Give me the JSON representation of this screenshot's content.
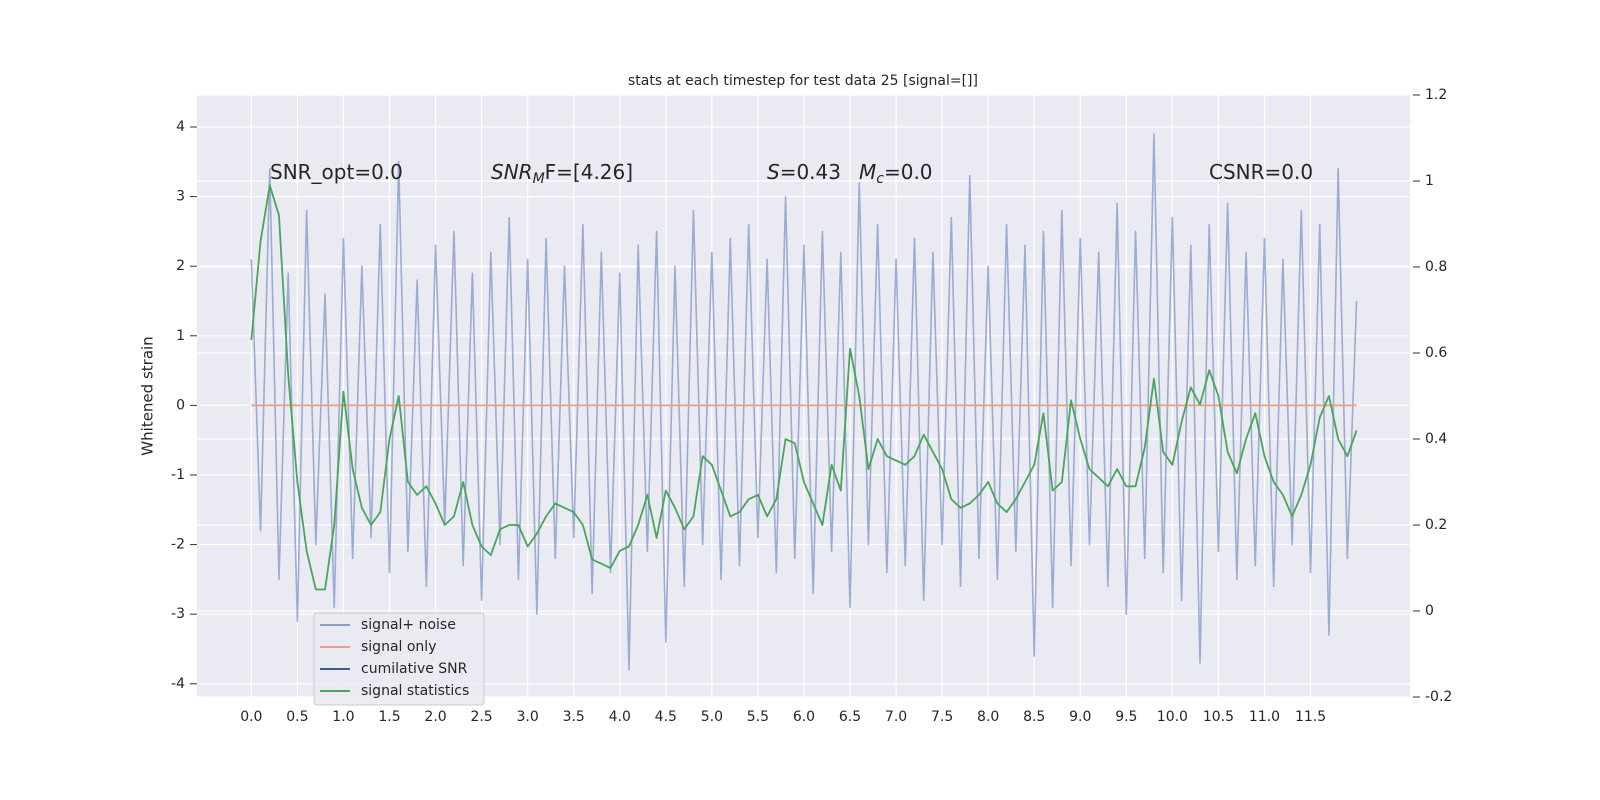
{
  "chart_data": {
    "type": "line",
    "title": "stats at each timestep for test data 25 [signal=[]]",
    "ylabel": "Whitened strain",
    "xlim": [
      -0.59,
      12.58
    ],
    "ylim": [
      -4.19,
      4.46
    ],
    "y2lim": [
      -0.2,
      1.2
    ],
    "xticks": [
      {
        "value": 0,
        "label": "0.0"
      },
      0.5,
      {
        "value": 1,
        "label": "1.0"
      },
      1.5,
      {
        "value": 2,
        "label": "2.0"
      },
      2.5,
      {
        "value": 3,
        "label": "3.0"
      },
      3.5,
      {
        "value": 4,
        "label": "4.0"
      },
      4.5,
      {
        "value": 5,
        "label": "5.0"
      },
      5.5,
      {
        "value": 6,
        "label": "6.0"
      },
      6.5,
      {
        "value": 7,
        "label": "7.0"
      },
      7.5,
      {
        "value": 8,
        "label": "8.0"
      },
      8.5,
      {
        "value": 9,
        "label": "9.0"
      },
      9.5,
      {
        "value": 10,
        "label": "10.0"
      },
      10.5,
      {
        "value": 11,
        "label": "11.0"
      },
      11.5
    ],
    "yticks": [
      -4,
      -3,
      -2,
      -1,
      0,
      1,
      2,
      3,
      4
    ],
    "y2ticks": [
      -0.2,
      0.0,
      0.2,
      0.4,
      0.6,
      0.8,
      1.0,
      1.2
    ],
    "grid": true,
    "annotations": [
      [
        {
          "text": "SNR_opt=0.0"
        }
      ],
      [
        {
          "text": "SNR",
          "italic": true
        },
        {
          "text": "M",
          "italic": true,
          "sub": true
        },
        {
          "text": "F=[4.26]"
        }
      ],
      [
        {
          "text": "S",
          "italic": true
        },
        {
          "text": "=0.43"
        }
      ],
      [
        {
          "text": "M",
          "italic": true
        },
        {
          "text": "c",
          "italic": true,
          "sub": true
        },
        {
          "text": "=0.0"
        }
      ],
      [
        {
          "text": "CSNR=0.0"
        }
      ]
    ],
    "x": [
      0,
      0.1,
      0.2,
      0.3,
      0.4,
      0.5,
      0.6,
      0.7,
      0.8,
      0.9,
      1,
      1.1,
      1.2,
      1.3,
      1.4,
      1.5,
      1.6,
      1.7,
      1.8,
      1.9,
      2,
      2.1,
      2.2,
      2.3,
      2.4,
      2.5,
      2.6,
      2.7,
      2.8,
      2.9,
      3,
      3.1,
      3.2,
      3.3,
      3.4,
      3.5,
      3.6,
      3.7,
      3.8,
      3.9,
      4,
      4.1,
      4.2,
      4.3,
      4.4,
      4.5,
      4.6,
      4.7,
      4.8,
      4.9,
      5,
      5.1,
      5.2,
      5.3,
      5.4,
      5.5,
      5.6,
      5.7,
      5.8,
      5.9,
      6,
      6.1,
      6.2,
      6.3,
      6.4,
      6.5,
      6.6,
      6.7,
      6.8,
      6.9,
      7,
      7.1,
      7.2,
      7.3,
      7.4,
      7.5,
      7.6,
      7.7,
      7.8,
      7.9,
      8,
      8.1,
      8.2,
      8.3,
      8.4,
      8.5,
      8.6,
      8.7,
      8.8,
      8.9,
      9,
      9.1,
      9.2,
      9.3,
      9.4,
      9.5,
      9.6,
      9.7,
      9.8,
      9.9,
      10,
      10.1,
      10.2,
      10.3,
      10.4,
      10.5,
      10.6,
      10.7,
      10.8,
      10.9,
      11,
      11.1,
      11.2,
      11.3,
      11.4,
      11.5,
      11.6,
      11.7,
      11.8,
      11.9,
      12
    ],
    "series": [
      {
        "name": "signal+ noise",
        "color": "#8da0cb",
        "values": [
          2.1,
          -1.8,
          3.4,
          -2.5,
          1.9,
          -3.1,
          2.8,
          -2.0,
          1.6,
          -2.9,
          2.4,
          -2.2,
          2.0,
          -1.9,
          2.6,
          -2.4,
          3.5,
          -2.1,
          1.8,
          -2.6,
          2.3,
          -1.7,
          2.5,
          -2.3,
          1.9,
          -2.8,
          2.2,
          -2.0,
          2.7,
          -2.5,
          2.1,
          -3.0,
          2.4,
          -2.2,
          2.0,
          -1.9,
          2.6,
          -2.7,
          2.2,
          -2.4,
          1.9,
          -3.8,
          2.3,
          -2.1,
          2.5,
          -3.4,
          2.0,
          -2.6,
          2.8,
          -2.0,
          2.2,
          -2.5,
          2.4,
          -2.3,
          2.6,
          -1.9,
          2.1,
          -2.4,
          3.0,
          -2.2,
          2.3,
          -2.7,
          2.5,
          -2.1,
          2.2,
          -2.9,
          3.2,
          -2.0,
          2.6,
          -2.4,
          2.1,
          -2.3,
          2.4,
          -2.8,
          2.2,
          -2.0,
          2.7,
          -2.6,
          3.3,
          -2.2,
          2.0,
          -2.5,
          2.6,
          -2.1,
          2.3,
          -3.6,
          2.5,
          -2.9,
          2.8,
          -2.3,
          2.4,
          -2.0,
          2.2,
          -2.6,
          2.9,
          -3.0,
          2.5,
          -2.2,
          3.9,
          -2.4,
          2.7,
          -2.8,
          2.3,
          -3.7,
          2.6,
          -2.1,
          2.9,
          -2.5,
          2.2,
          -2.3,
          2.4,
          -2.6,
          2.1,
          -2.0,
          2.8,
          -2.4,
          2.6,
          -3.3,
          3.4,
          -2.2,
          1.5
        ]
      },
      {
        "name": "signal only",
        "color": "#e8a08a",
        "x": [
          0,
          12
        ],
        "values": [
          0,
          0
        ]
      },
      {
        "name": "cumilative SNR",
        "color": "#3a5da0"
      },
      {
        "name": "signal statistics",
        "color": "#4aa55a",
        "axis": "y2",
        "values": [
          0.63,
          0.86,
          0.99,
          0.92,
          0.55,
          0.3,
          0.14,
          0.05,
          0.05,
          0.2,
          0.51,
          0.33,
          0.24,
          0.2,
          0.23,
          0.4,
          0.5,
          0.3,
          0.27,
          0.29,
          0.25,
          0.2,
          0.22,
          0.3,
          0.2,
          0.15,
          0.13,
          0.19,
          0.2,
          0.2,
          0.15,
          0.18,
          0.22,
          0.25,
          0.24,
          0.23,
          0.2,
          0.12,
          0.11,
          0.1,
          0.14,
          0.15,
          0.2,
          0.27,
          0.17,
          0.28,
          0.24,
          0.19,
          0.22,
          0.36,
          0.34,
          0.28,
          0.22,
          0.23,
          0.26,
          0.27,
          0.22,
          0.26,
          0.4,
          0.39,
          0.3,
          0.25,
          0.2,
          0.34,
          0.28,
          0.61,
          0.5,
          0.33,
          0.4,
          0.36,
          0.35,
          0.34,
          0.36,
          0.41,
          0.37,
          0.33,
          0.26,
          0.24,
          0.25,
          0.27,
          0.3,
          0.25,
          0.23,
          0.26,
          0.3,
          0.34,
          0.46,
          0.28,
          0.3,
          0.49,
          0.4,
          0.33,
          0.31,
          0.29,
          0.33,
          0.29,
          0.29,
          0.38,
          0.54,
          0.37,
          0.34,
          0.44,
          0.52,
          0.48,
          0.56,
          0.5,
          0.37,
          0.32,
          0.4,
          0.46,
          0.36,
          0.3,
          0.27,
          0.22,
          0.27,
          0.34,
          0.45,
          0.5,
          0.4,
          0.36,
          0.42
        ]
      }
    ]
  }
}
